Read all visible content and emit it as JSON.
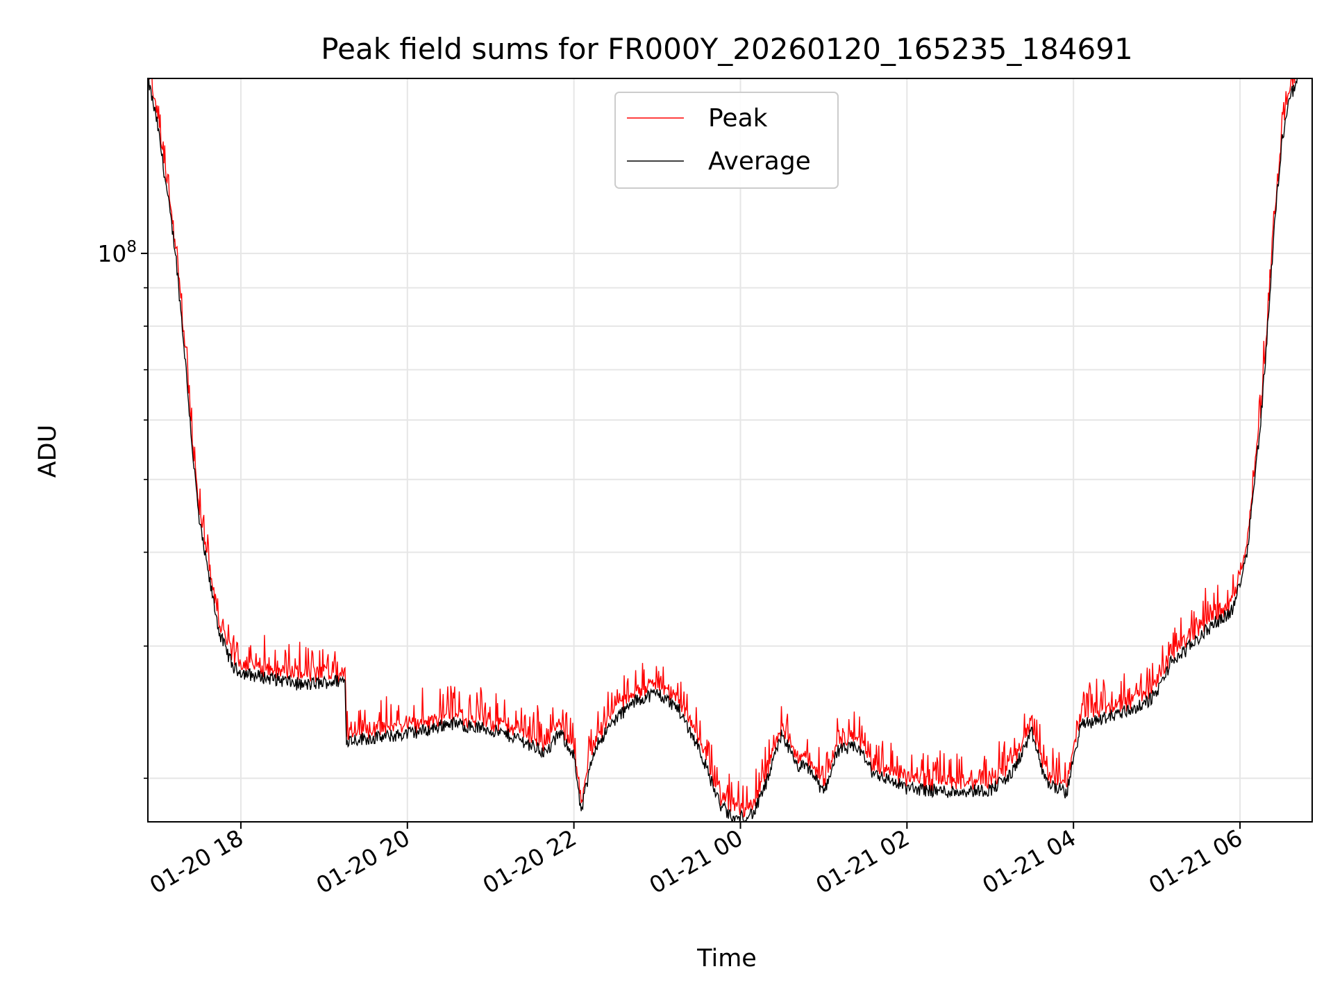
{
  "chart_data": {
    "type": "line",
    "title": "Peak field sums for FR000Y_20260120_165235_184691",
    "xlabel": "Time",
    "ylabel": "ADU",
    "y_scale": "log",
    "ylim": [
      17500000,
      171000000
    ],
    "xlim": [
      "2026-01-20 16:53",
      "2026-01-21 06:52"
    ],
    "x_ticks": [
      "2026-01-20 18:00",
      "2026-01-20 20:00",
      "2026-01-20 22:00",
      "2026-01-21 00:00",
      "2026-01-21 02:00",
      "2026-01-21 04:00",
      "2026-01-21 06:00"
    ],
    "x_tick_labels": [
      "01-20 18",
      "01-20 20",
      "01-20 22",
      "01-21 00",
      "01-21 02",
      "01-21 04",
      "01-21 06"
    ],
    "y_major_ticks": [
      100000000
    ],
    "y_major_tick_labels": [
      "10^8"
    ],
    "y_minor_ticks": [
      20000000,
      30000000,
      40000000,
      50000000,
      60000000,
      70000000,
      80000000,
      90000000
    ],
    "grid": true,
    "legend_position": "top-center",
    "series": [
      {
        "name": "Peak",
        "color": "#ff0000"
      },
      {
        "name": "Average",
        "color": "#000000"
      }
    ],
    "average_points": [
      [
        "2026-01-20 16:53",
        171000000
      ],
      [
        "2026-01-20 17:00",
        148000000
      ],
      [
        "2026-01-20 17:07",
        120000000
      ],
      [
        "2026-01-20 17:13",
        100000000
      ],
      [
        "2026-01-20 17:20",
        72000000
      ],
      [
        "2026-01-20 17:25",
        55000000
      ],
      [
        "2026-01-20 17:30",
        44000000
      ],
      [
        "2026-01-20 17:37",
        37000000
      ],
      [
        "2026-01-20 17:45",
        31000000
      ],
      [
        "2026-01-20 17:55",
        28000000
      ],
      [
        "2026-01-20 18:05",
        27500000
      ],
      [
        "2026-01-20 18:30",
        27000000
      ],
      [
        "2026-01-20 18:45",
        26600000
      ],
      [
        "2026-01-20 19:05",
        26900000
      ],
      [
        "2026-01-20 19:15",
        27000000
      ],
      [
        "2026-01-20 19:16",
        22500000
      ],
      [
        "2026-01-20 19:45",
        22700000
      ],
      [
        "2026-01-20 20:15",
        23200000
      ],
      [
        "2026-01-20 20:30",
        23700000
      ],
      [
        "2026-01-20 21:00",
        23200000
      ],
      [
        "2026-01-20 21:20",
        22600000
      ],
      [
        "2026-01-20 21:40",
        21600000
      ],
      [
        "2026-01-20 21:50",
        23000000
      ],
      [
        "2026-01-20 22:00",
        21500000
      ],
      [
        "2026-01-20 22:05",
        18000000
      ],
      [
        "2026-01-20 22:15",
        22000000
      ],
      [
        "2026-01-20 22:30",
        24000000
      ],
      [
        "2026-01-20 22:45",
        25400000
      ],
      [
        "2026-01-20 23:00",
        26000000
      ],
      [
        "2026-01-20 23:15",
        24800000
      ],
      [
        "2026-01-20 23:30",
        22000000
      ],
      [
        "2026-01-20 23:45",
        18500000
      ],
      [
        "2026-01-20 23:55",
        17600000
      ],
      [
        "2026-01-21 00:10",
        18000000
      ],
      [
        "2026-01-21 00:20",
        20000000
      ],
      [
        "2026-01-21 00:30",
        23000000
      ],
      [
        "2026-01-21 00:40",
        20800000
      ],
      [
        "2026-01-21 00:50",
        20600000
      ],
      [
        "2026-01-21 01:00",
        19100000
      ],
      [
        "2026-01-21 01:10",
        21800000
      ],
      [
        "2026-01-21 01:25",
        22000000
      ],
      [
        "2026-01-21 01:35",
        20400000
      ],
      [
        "2026-01-21 02:00",
        19400000
      ],
      [
        "2026-01-21 02:30",
        19200000
      ],
      [
        "2026-01-21 03:00",
        19300000
      ],
      [
        "2026-01-21 03:15",
        20200000
      ],
      [
        "2026-01-21 03:30",
        23000000
      ],
      [
        "2026-01-21 03:40",
        19800000
      ],
      [
        "2026-01-21 03:55",
        19100000
      ],
      [
        "2026-01-21 04:05",
        23500000
      ],
      [
        "2026-01-21 04:20",
        24000000
      ],
      [
        "2026-01-21 04:50",
        25000000
      ],
      [
        "2026-01-21 05:00",
        26000000
      ],
      [
        "2026-01-21 05:10",
        28500000
      ],
      [
        "2026-01-21 05:20",
        29500000
      ],
      [
        "2026-01-21 05:40",
        32000000
      ],
      [
        "2026-01-21 05:55",
        33500000
      ],
      [
        "2026-01-21 06:05",
        40000000
      ],
      [
        "2026-01-21 06:15",
        60000000
      ],
      [
        "2026-01-21 06:20",
        80000000
      ],
      [
        "2026-01-21 06:25",
        110000000
      ],
      [
        "2026-01-21 06:30",
        140000000
      ],
      [
        "2026-01-21 06:35",
        160000000
      ],
      [
        "2026-01-21 06:42",
        171000000
      ]
    ]
  }
}
